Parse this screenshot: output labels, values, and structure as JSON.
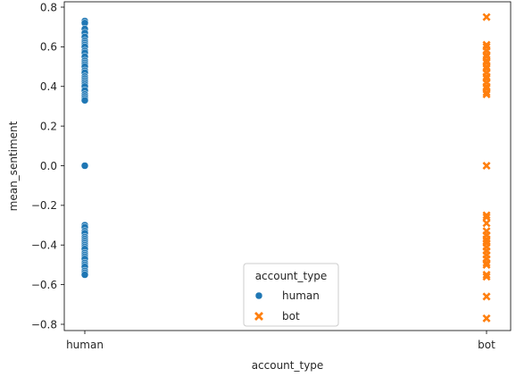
{
  "chart_data": {
    "type": "scatter",
    "xlabel": "account_type",
    "ylabel": "mean_sentiment",
    "categories": [
      "human",
      "bot"
    ],
    "ylim": [
      -0.85,
      0.82
    ],
    "yticks": [
      0.8,
      0.6,
      0.4,
      0.2,
      0.0,
      -0.2,
      -0.4,
      -0.6,
      -0.8
    ],
    "ytick_labels": [
      "0.8",
      "0.6",
      "0.4",
      "0.2",
      "0.0",
      "−0.2",
      "−0.4",
      "−0.6",
      "−0.8"
    ],
    "grid": false,
    "legend": {
      "title": "account_type",
      "placement": "lower-center",
      "entries": [
        "human",
        "bot"
      ]
    },
    "series": [
      {
        "name": "human",
        "category": "human",
        "marker": "circle",
        "color": "#1f77b4",
        "values": [
          0.73,
          0.72,
          0.69,
          0.67,
          0.65,
          0.63,
          0.62,
          0.61,
          0.6,
          0.58,
          0.57,
          0.55,
          0.53,
          0.52,
          0.51,
          0.5,
          0.48,
          0.47,
          0.45,
          0.44,
          0.43,
          0.42,
          0.41,
          0.4,
          0.38,
          0.36,
          0.35,
          0.34,
          0.33,
          0.0,
          -0.3,
          -0.31,
          -0.33,
          -0.34,
          -0.36,
          -0.37,
          -0.38,
          -0.39,
          -0.4,
          -0.41,
          -0.42,
          -0.44,
          -0.45,
          -0.46,
          -0.47,
          -0.49,
          -0.5,
          -0.51,
          -0.53,
          -0.54,
          -0.55
        ]
      },
      {
        "name": "bot",
        "category": "bot",
        "marker": "x",
        "color": "#ff7f0e",
        "values": [
          0.75,
          0.61,
          0.6,
          0.58,
          0.56,
          0.55,
          0.53,
          0.52,
          0.5,
          0.49,
          0.47,
          0.45,
          0.44,
          0.42,
          0.4,
          0.39,
          0.37,
          0.36,
          0.0,
          -0.25,
          -0.26,
          -0.29,
          -0.33,
          -0.35,
          -0.37,
          -0.38,
          -0.39,
          -0.41,
          -0.43,
          -0.45,
          -0.47,
          -0.49,
          -0.5,
          -0.55,
          -0.56,
          -0.66,
          -0.77
        ]
      }
    ]
  }
}
